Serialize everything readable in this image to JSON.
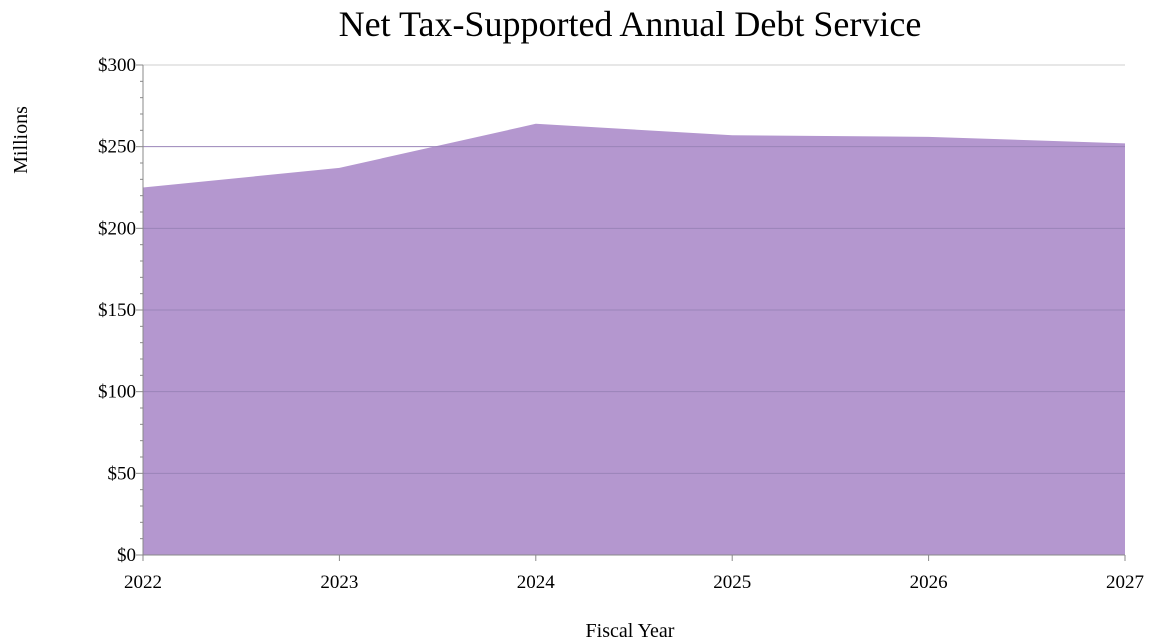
{
  "chart_data": {
    "type": "area",
    "title": "Net Tax-Supported Annual Debt Service",
    "xlabel": "Fiscal Year",
    "ylabel": "Millions",
    "x": [
      2022,
      2023,
      2024,
      2025,
      2026,
      2027
    ],
    "series": [
      {
        "values": [
          225,
          237,
          264,
          257,
          256,
          252
        ]
      }
    ],
    "ylim": [
      0,
      300
    ],
    "yticks": [
      0,
      50,
      100,
      150,
      200,
      250,
      300
    ],
    "ytick_labels": [
      "$0",
      "$50",
      "$100",
      "$150",
      "$200",
      "$250",
      "$300"
    ],
    "xtick_labels": [
      "2022",
      "2023",
      "2024",
      "2025",
      "2026",
      "2027"
    ],
    "grid": "horizontal",
    "colors": {
      "area": "#b497cf",
      "grid": "#9a84b8",
      "axis": "#888888"
    }
  }
}
